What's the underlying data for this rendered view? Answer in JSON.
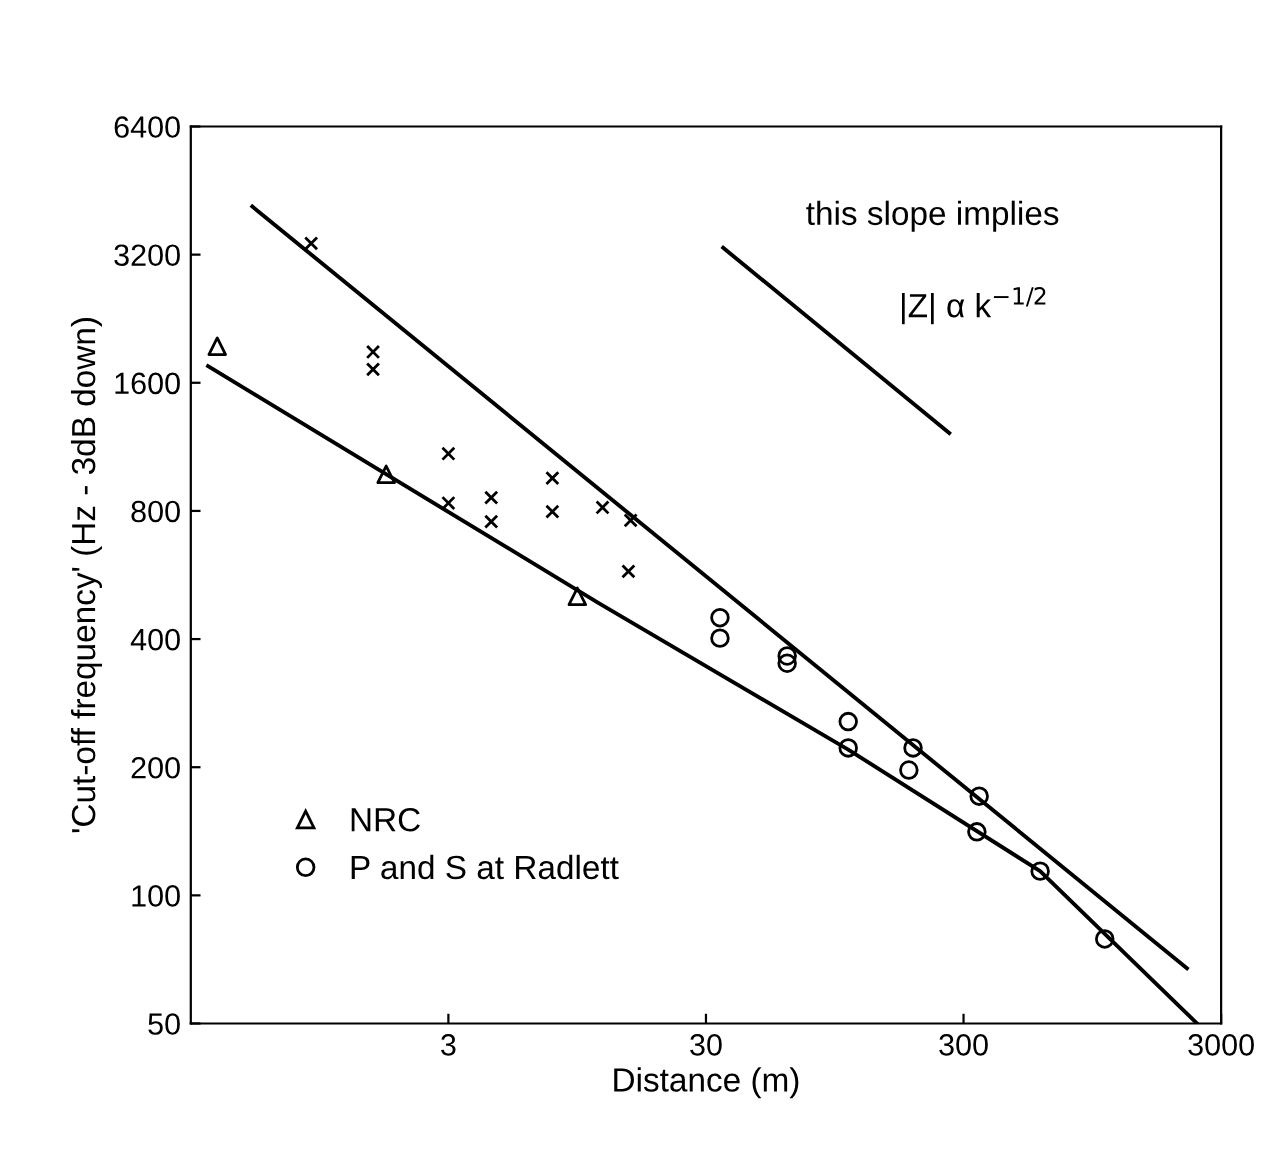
{
  "chart_data": {
    "type": "scatter",
    "xlabel": "Distance (m)",
    "ylabel": "'Cut-off frequency' (Hz - 3dB down)",
    "log": "xy",
    "xlim": [
      0.3,
      3000
    ],
    "ylim": [
      50,
      6400
    ],
    "xticks": [
      3,
      30,
      300,
      3000
    ],
    "yticks": [
      50,
      100,
      200,
      400,
      800,
      1600,
      3200,
      6400
    ],
    "grid": false,
    "legend": "bottom left",
    "annotations": [
      "this slope implies",
      "|Z| α k$^{−1/2}$"
    ],
    "series": [
      {
        "name": "NRC",
        "type": "scatter",
        "marker": "triangle",
        "color": "#000000",
        "x": [
          0.38,
          1.72,
          9.5
        ],
        "values": [
          1950,
          975,
          504
        ]
      },
      {
        "type": "scatter",
        "marker": "cross",
        "color": "#000000",
        "x": [
          0.88,
          1.53,
          1.53,
          3.0,
          3.0,
          4.4,
          4.4,
          7.6,
          7.6,
          11.9,
          15.3,
          15
        ],
        "values": [
          3400,
          1890,
          1720,
          1090,
          835,
          860,
          755,
          955,
          797,
          815,
          760,
          577
        ]
      },
      {
        "name": "P and S at Radlett",
        "type": "scatter",
        "marker": "circle",
        "color": "#000000",
        "x": [
          34,
          34,
          62,
          62,
          107,
          107,
          191,
          184,
          345,
          338,
          595,
          1060
        ],
        "values": [
          449,
          402,
          351,
          365,
          256,
          222,
          222,
          197,
          171,
          141,
          114,
          79
        ]
      },
      {
        "type": "line",
        "marker": "none",
        "line_style": "solid",
        "color": "#000000",
        "x": [
          0.52,
          2210
        ],
        "values": [
          4150,
          67.4
        ]
      },
      {
        "type": "line",
        "marker": "none",
        "line_style": "solid",
        "color": "#000000",
        "x": [
          0.35,
          11.5,
          107,
          595,
          2420
        ],
        "values": [
          1750,
          486,
          220,
          114,
          50
        ]
      },
      {
        "type": "line",
        "marker": "none",
        "line_style": "solid",
        "color": "#000000",
        "x": [
          35,
          264
        ],
        "values": [
          3320,
          1220
        ]
      }
    ]
  }
}
